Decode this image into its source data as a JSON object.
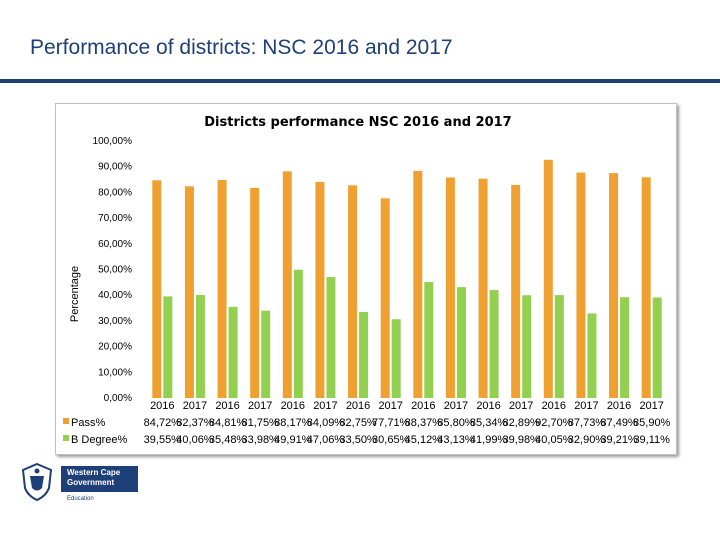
{
  "slide": {
    "title": "Performance of districts: NSC 2016 and 2017"
  },
  "logo": {
    "line1": "Western Cape",
    "line2": "Government",
    "sub": "Education"
  },
  "colors": {
    "pass": "#f0a030",
    "bdegree": "#92d050",
    "title_text": "#1f3f78",
    "rule": "#1e3f78"
  },
  "chart_data": {
    "type": "bar",
    "title": "Districts performance NSC 2016 and 2017",
    "ylabel": "Percentage",
    "xlabel": "",
    "ylim": [
      0,
      100
    ],
    "yticks": [
      "0,00%",
      "10,00%",
      "20,00%",
      "30,00%",
      "40,00%",
      "50,00%",
      "60,00%",
      "70,00%",
      "80,00%",
      "90,00%",
      "100,00%"
    ],
    "grid": false,
    "categories": [
      "2016",
      "2017",
      "2016",
      "2017",
      "2016",
      "2017",
      "2016",
      "2017",
      "2016",
      "2017",
      "2016",
      "2017",
      "2016",
      "2017",
      "2016",
      "2017"
    ],
    "series": [
      {
        "name": "Pass%",
        "color": "#f0a030",
        "values": [
          84.72,
          82.37,
          84.81,
          81.75,
          88.17,
          84.09,
          82.75,
          77.71,
          88.37,
          85.8,
          85.34,
          82.89,
          92.7,
          87.73,
          87.49,
          85.9
        ],
        "labels": [
          "84,72%",
          "82,37%",
          "84,81%",
          "81,75%",
          "88,17%",
          "84,09%",
          "82,75%",
          "77,71%",
          "88,37%",
          "85,80%",
          "85,34%",
          "82,89%",
          "92,70%",
          "87,73%",
          "87,49%",
          "85,90%"
        ]
      },
      {
        "name": "B Degree%",
        "color": "#92d050",
        "values": [
          39.55,
          40.06,
          35.48,
          33.98,
          49.91,
          47.06,
          33.5,
          30.65,
          45.12,
          43.13,
          41.99,
          39.98,
          40.05,
          32.9,
          39.21,
          39.11
        ],
        "labels": [
          "39,55%",
          "40,06%",
          "35,48%",
          "33,98%",
          "49,91%",
          "47,06%",
          "33,50%",
          "30,65%",
          "45,12%",
          "43,13%",
          "41,99%",
          "39,98%",
          "40,05%",
          "32,90%",
          "39,21%",
          "39,11%"
        ]
      }
    ]
  }
}
